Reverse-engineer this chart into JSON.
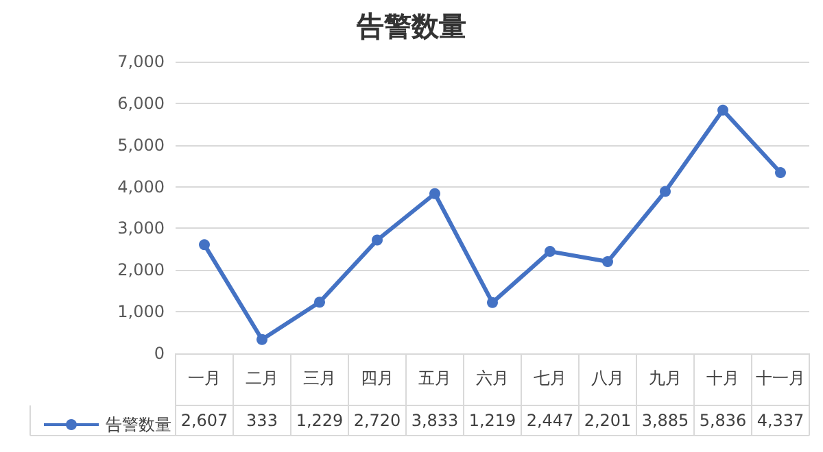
{
  "chart_data": {
    "type": "line",
    "title": "告警数量",
    "categories": [
      "一月",
      "二月",
      "三月",
      "四月",
      "五月",
      "六月",
      "七月",
      "八月",
      "九月",
      "十月",
      "十一月"
    ],
    "series": [
      {
        "name": "告警数量",
        "color": "#4472c4",
        "values": [
          2607,
          333,
          1229,
          2720,
          3833,
          1219,
          2447,
          2201,
          3885,
          5836,
          4337
        ],
        "value_labels": [
          "2,607",
          "333",
          "1,229",
          "2,720",
          "3,833",
          "1,219",
          "2,447",
          "2,201",
          "3,885",
          "5,836",
          "4,337"
        ]
      }
    ],
    "ylim": [
      0,
      7000
    ],
    "yticks": [
      0,
      {
        "value": 1000,
        "label": "1,000"
      },
      {
        "value": 2000,
        "label": "2,000"
      },
      {
        "value": 3000,
        "label": "3,000"
      },
      {
        "value": 4000,
        "label": "4,000"
      },
      {
        "value": 5000,
        "label": "5,000"
      },
      {
        "value": 6000,
        "label": "6,000"
      },
      {
        "value": 7000,
        "label": "7,000"
      }
    ],
    "grid": "y",
    "legend": "bottom",
    "marker": "circle"
  }
}
